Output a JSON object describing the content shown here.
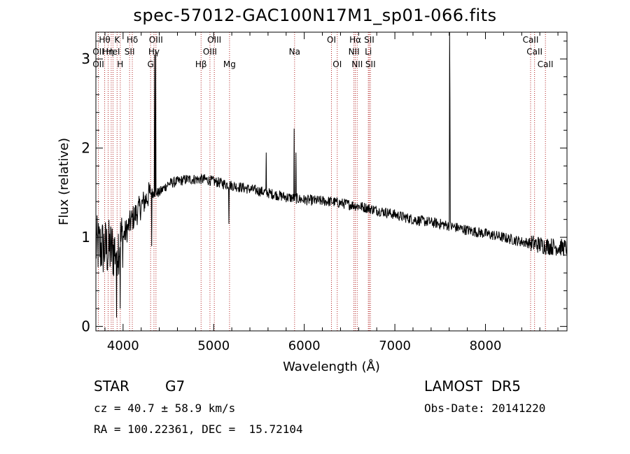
{
  "title": "spec-57012-GAC100N17M1_sp01-066.fits",
  "footer": {
    "object_class": "STAR",
    "subclass": "G7",
    "survey": "LAMOST  DR5",
    "redshift": "cz = 40.7 ± 58.9 km/s",
    "obs_date": "Obs-Date: 20141220",
    "coords": "RA = 100.22361, DEC =  15.72104"
  },
  "chart_data": {
    "type": "line",
    "title": "spec-57012-GAC100N17M1_sp01-066.fits",
    "xlabel": "Wavelength (Å)",
    "ylabel": "Flux (relative)",
    "xlim": [
      3700,
      8900
    ],
    "ylim": [
      -0.05,
      3.3
    ],
    "x_ticks": [
      4000,
      5000,
      6000,
      7000,
      8000
    ],
    "y_ticks": [
      0,
      1,
      2,
      3
    ],
    "grid": false,
    "line_color": "#000000",
    "marker_color": "#b22222",
    "continuum": [
      [
        3700,
        0.9
      ],
      [
        3900,
        0.85
      ],
      [
        4000,
        1.0
      ],
      [
        4100,
        1.2
      ],
      [
        4200,
        1.35
      ],
      [
        4300,
        1.5
      ],
      [
        4400,
        1.5
      ],
      [
        4500,
        1.6
      ],
      [
        4700,
        1.65
      ],
      [
        4900,
        1.65
      ],
      [
        5200,
        1.58
      ],
      [
        5500,
        1.52
      ],
      [
        5800,
        1.45
      ],
      [
        6000,
        1.42
      ],
      [
        6300,
        1.4
      ],
      [
        6600,
        1.35
      ],
      [
        6900,
        1.28
      ],
      [
        7200,
        1.2
      ],
      [
        7500,
        1.15
      ],
      [
        7800,
        1.08
      ],
      [
        8100,
        1.02
      ],
      [
        8400,
        0.95
      ],
      [
        8700,
        0.9
      ],
      [
        8900,
        0.88
      ]
    ],
    "features": [
      {
        "x": 3930,
        "y": 0.1
      },
      {
        "x": 3970,
        "y": 0.2
      },
      {
        "x": 4315,
        "y": 0.9
      },
      {
        "x": 4350,
        "y": 3.05
      },
      {
        "x": 4360,
        "y": 3.1
      },
      {
        "x": 5170,
        "y": 1.15
      },
      {
        "x": 5580,
        "y": 1.95
      },
      {
        "x": 5890,
        "y": 2.22
      },
      {
        "x": 5910,
        "y": 1.95
      },
      {
        "x": 7605,
        "y": 3.3
      },
      {
        "x": 7610,
        "y": 2.55
      }
    ],
    "line_markers": [
      {
        "wl": 3727,
        "label": "OII",
        "row": 1
      },
      {
        "wl": 3727,
        "label": "OII",
        "row": 2
      },
      {
        "wl": 3797,
        "label": "Hθ",
        "row": 0
      },
      {
        "wl": 3835,
        "label": "Hη",
        "row": 1
      },
      {
        "wl": 3869,
        "label": "",
        "row": 2
      },
      {
        "wl": 3889,
        "label": "HeI",
        "row": 1
      },
      {
        "wl": 3934,
        "label": "K",
        "row": 0
      },
      {
        "wl": 3969,
        "label": "H",
        "row": 2
      },
      {
        "wl": 4072,
        "label": "SII",
        "row": 1
      },
      {
        "wl": 4102,
        "label": "Hδ",
        "row": 0
      },
      {
        "wl": 4304,
        "label": "G",
        "row": 2
      },
      {
        "wl": 4341,
        "label": "Hγ",
        "row": 1
      },
      {
        "wl": 4363,
        "label": "OIII",
        "row": 0
      },
      {
        "wl": 4861,
        "label": "Hβ",
        "row": 2
      },
      {
        "wl": 4959,
        "label": "OIII",
        "row": 1
      },
      {
        "wl": 5007,
        "label": "OIII",
        "row": 0
      },
      {
        "wl": 5175,
        "label": "Mg",
        "row": 2
      },
      {
        "wl": 5893,
        "label": "Na",
        "row": 1
      },
      {
        "wl": 6300,
        "label": "OI",
        "row": 0
      },
      {
        "wl": 6364,
        "label": "OI",
        "row": 2
      },
      {
        "wl": 6548,
        "label": "NII",
        "row": 1
      },
      {
        "wl": 6563,
        "label": "Hα",
        "row": 0
      },
      {
        "wl": 6584,
        "label": "NII",
        "row": 2
      },
      {
        "wl": 6707,
        "label": "Li",
        "row": 1
      },
      {
        "wl": 6717,
        "label": "SII",
        "row": 0
      },
      {
        "wl": 6731,
        "label": "SII",
        "row": 2
      },
      {
        "wl": 8498,
        "label": "CaII",
        "row": 0
      },
      {
        "wl": 8542,
        "label": "CaII",
        "row": 1
      },
      {
        "wl": 8662,
        "label": "CaII",
        "row": 2
      }
    ]
  }
}
